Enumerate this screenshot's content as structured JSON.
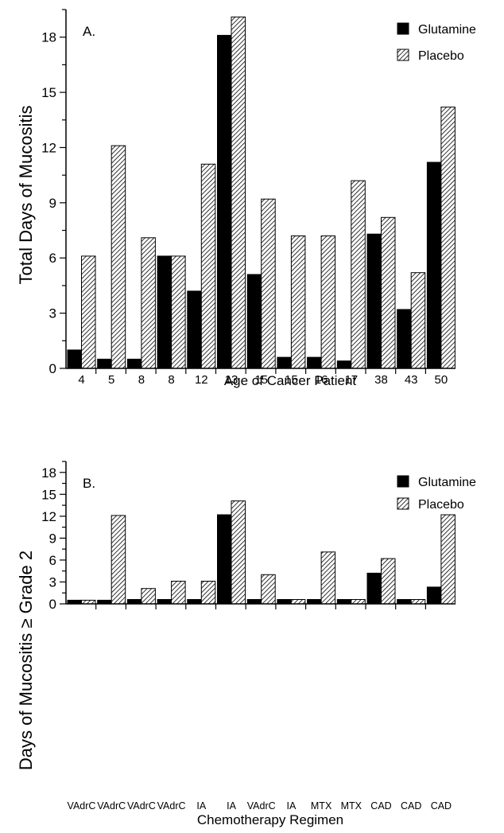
{
  "chart_data": [
    {
      "type": "bar",
      "panel_label": "A.",
      "ylabel": "Total Days of Mucositis",
      "xlabel": "Age of Cancer Patient",
      "yticks": [
        0,
        3,
        6,
        9,
        12,
        15,
        18
      ],
      "ylim": [
        0,
        19.5
      ],
      "categories": [
        "4",
        "5",
        "8",
        "8",
        "12",
        "13",
        "15",
        "15",
        "16",
        "17",
        "38",
        "43",
        "50"
      ],
      "series": [
        {
          "name": "Glutamine",
          "color": "#000000",
          "pattern": "solid",
          "values": [
            1.0,
            0.5,
            0.5,
            6.1,
            4.2,
            18.1,
            5.1,
            0.6,
            0.6,
            0.4,
            7.3,
            3.2,
            11.2
          ]
        },
        {
          "name": "Placebo",
          "color": "#000000",
          "pattern": "hatched",
          "values": [
            6.1,
            12.1,
            7.1,
            6.1,
            11.1,
            19.1,
            9.2,
            7.2,
            7.2,
            10.2,
            8.2,
            5.2,
            14.2
          ]
        }
      ],
      "legend_position": "top-right",
      "grid": false
    },
    {
      "type": "bar",
      "panel_label": "B.",
      "ylabel": "Days of Mucositis ≥ Grade 2",
      "xlabel": "Chemotherapy Regimen",
      "yticks": [
        0,
        3,
        6,
        9,
        12,
        15,
        18
      ],
      "ylim": [
        0,
        19.5
      ],
      "categories": [
        "VAdrC",
        "VAdrC",
        "VAdrC",
        "VAdrC",
        "IA",
        "IA",
        "VAdrC",
        "IA",
        "MTX",
        "MTX",
        "CAD",
        "CAD",
        "CAD"
      ],
      "series": [
        {
          "name": "Glutamine",
          "color": "#000000",
          "pattern": "solid",
          "values": [
            0.5,
            0.5,
            0.6,
            0.6,
            0.6,
            12.2,
            0.6,
            0.6,
            0.6,
            0.6,
            4.2,
            0.6,
            2.3
          ]
        },
        {
          "name": "Placebo",
          "color": "#000000",
          "pattern": "hatched",
          "values": [
            0.5,
            12.1,
            2.1,
            3.1,
            3.1,
            14.1,
            4.0,
            0.6,
            7.1,
            0.6,
            6.2,
            0.6,
            12.2
          ]
        }
      ],
      "legend_position": "top-right",
      "grid": false
    }
  ]
}
